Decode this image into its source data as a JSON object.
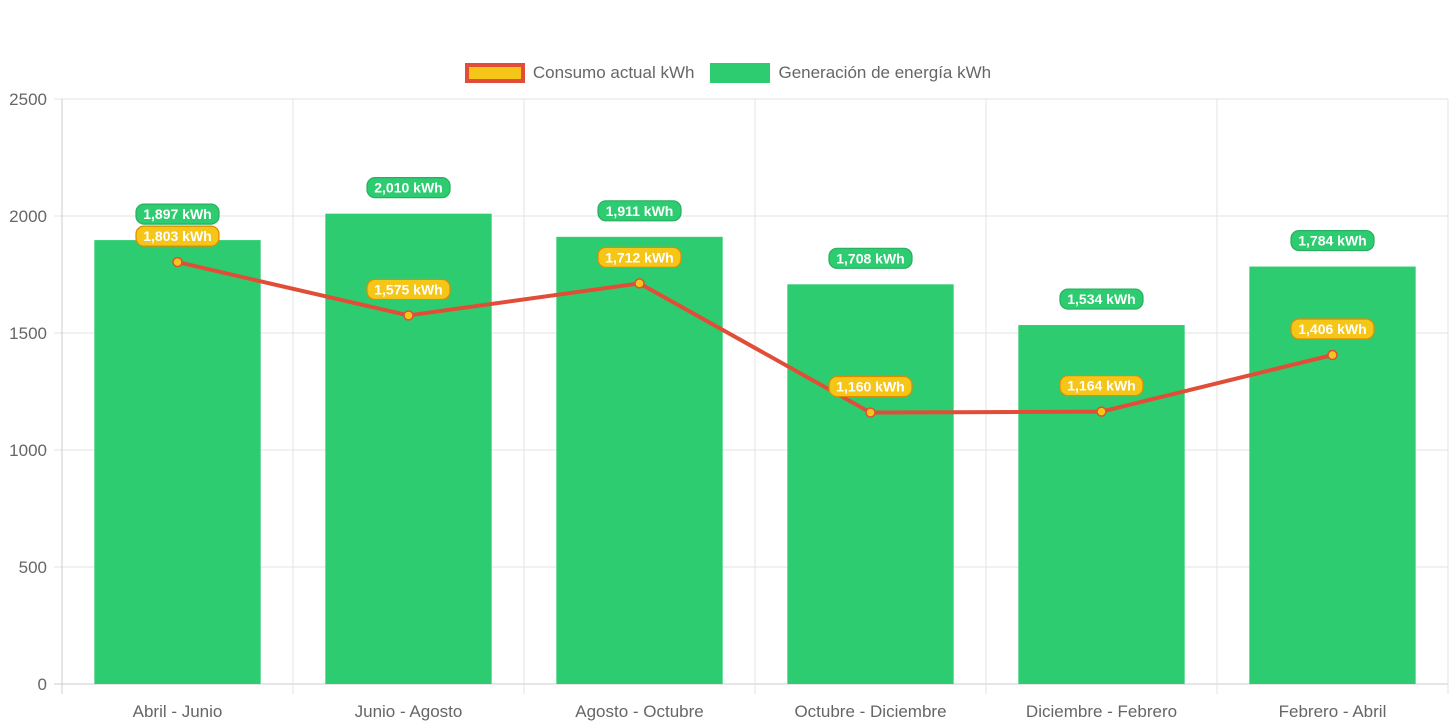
{
  "chart_data": {
    "type": "bar",
    "categories": [
      "Abril - Junio",
      "Junio - Agosto",
      "Agosto - Octubre",
      "Octubre - Diciembre",
      "Diciembre - Febrero",
      "Febrero - Abril"
    ],
    "series": [
      {
        "name": "Consumo actual kWh",
        "type": "line",
        "values": [
          1803,
          1575,
          1712,
          1160,
          1164,
          1406
        ],
        "labels": [
          "1,803 kWh",
          "1,575 kWh",
          "1,712 kWh",
          "1,160 kWh",
          "1,164 kWh",
          "1,406 kWh"
        ],
        "color": "#e24d37",
        "fill_color": "#f5c518"
      },
      {
        "name": "Generación de energía kWh",
        "type": "bar",
        "values": [
          1897,
          2010,
          1911,
          1708,
          1534,
          1784
        ],
        "labels": [
          "1,897 kWh",
          "2,010 kWh",
          "1,911 kWh",
          "1,708 kWh",
          "1,534 kWh",
          "1,784 kWh"
        ],
        "color": "#2ecc71",
        "label_bg": "#27ae60"
      }
    ],
    "yticks": [
      "0",
      "500",
      "1000",
      "1500",
      "2000",
      "2500"
    ],
    "ylim": [
      0,
      2500
    ],
    "grid": true,
    "legend_position": "top"
  }
}
